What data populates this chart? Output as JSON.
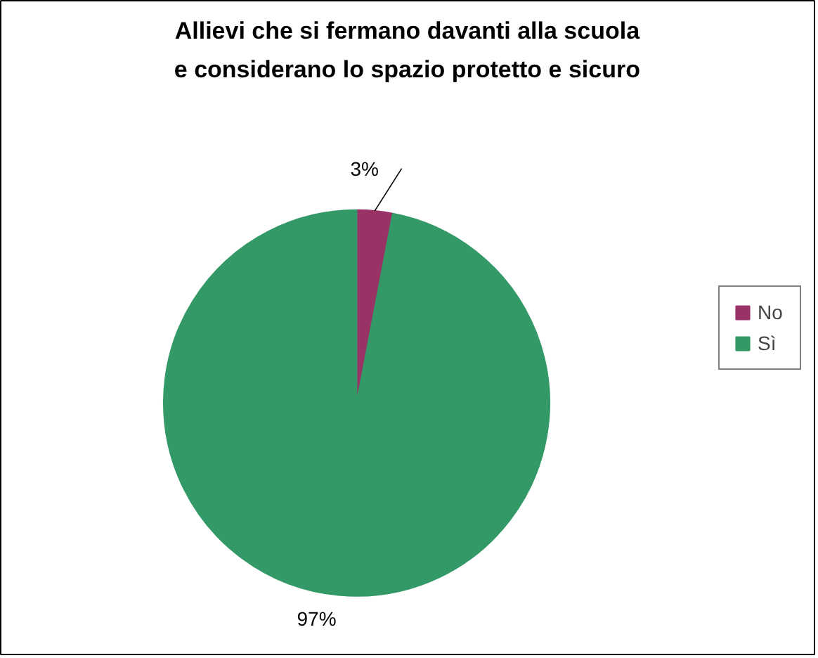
{
  "chart_data": {
    "type": "pie",
    "title": "Allievi che si fermano davanti alla scuola e considerano lo spazio protetto e sicuro",
    "categories": [
      "No",
      "Sì"
    ],
    "values": [
      3,
      97
    ],
    "colors": [
      "#993366",
      "#339966"
    ],
    "value_labels": [
      "3%",
      "97%"
    ],
    "legend": "right"
  }
}
